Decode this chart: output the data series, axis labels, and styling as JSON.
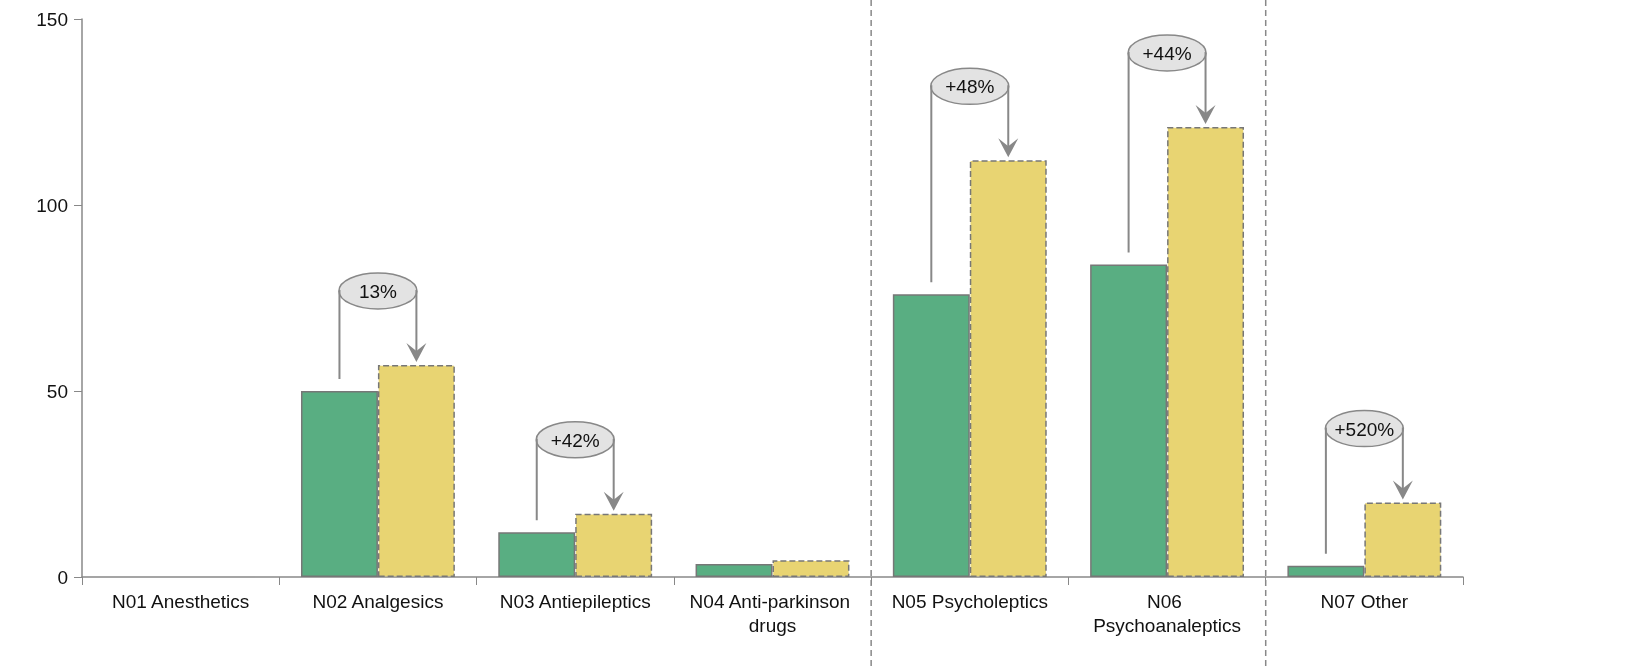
{
  "chart_data": {
    "type": "bar",
    "categories": [
      "N01 Anesthetics",
      "N02 Analgesics",
      "N03 Antiepileptics",
      "N04 Anti-parkinson drugs",
      "N05 Psycholeptics",
      "N06 Psychoanaleptics",
      "N07 Other"
    ],
    "series": [
      {
        "color": "#59ae82",
        "values": [
          null,
          50,
          12,
          3.5,
          76,
          84,
          3
        ]
      },
      {
        "color": "#e8d472",
        "values": [
          null,
          57,
          17,
          4.5,
          112,
          121,
          20
        ]
      }
    ],
    "ylim": [
      0,
      150
    ],
    "yticks": [
      0,
      50,
      100,
      150
    ],
    "grid": false,
    "annotations": [
      "13%",
      "+42%",
      "+48%",
      "+44%",
      "+520%"
    ]
  }
}
